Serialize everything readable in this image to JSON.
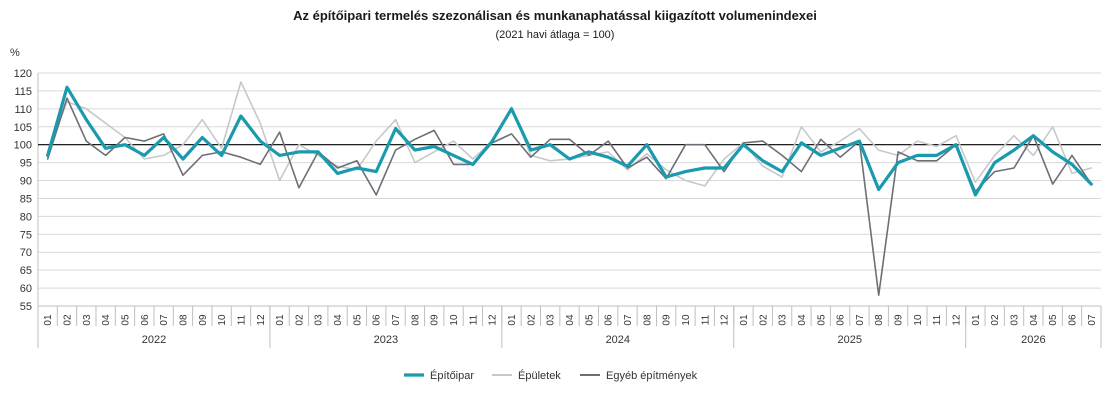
{
  "chart_data": {
    "type": "line",
    "title": "Az építőipari termelés szezonálisan és munkanaphatással kiigazított volumenindexei",
    "subtitle": "(2021 havi átlaga = 100)",
    "ylabel": "%",
    "ylim": [
      55,
      120
    ],
    "yticks": [
      55,
      60,
      65,
      70,
      75,
      80,
      85,
      90,
      95,
      100,
      105,
      110,
      115,
      120
    ],
    "reference_line": 100,
    "grid": true,
    "legend_position": "bottom",
    "years": [
      "2022",
      "2023",
      "2024",
      "2025",
      "2026"
    ],
    "months": [
      "01",
      "02",
      "03",
      "04",
      "05",
      "06",
      "07",
      "08",
      "09",
      "10",
      "11",
      "12",
      "01",
      "02",
      "03",
      "04",
      "05",
      "06",
      "07",
      "08",
      "09",
      "10",
      "11",
      "12",
      "01",
      "02",
      "03",
      "04",
      "05",
      "06",
      "07",
      "08",
      "09",
      "10",
      "11",
      "12",
      "01",
      "02",
      "03",
      "04",
      "05",
      "06",
      "07",
      "08",
      "09",
      "10",
      "11",
      "12",
      "01",
      "02",
      "03",
      "04",
      "05",
      "06",
      "07"
    ],
    "series": [
      {
        "name": "Építőipar",
        "color": "#1a9aae",
        "values": [
          97,
          116,
          107,
          99,
          100,
          97,
          102,
          96,
          102,
          97,
          108,
          101,
          97,
          98,
          98,
          92,
          93.5,
          92.5,
          104.5,
          98.5,
          99.5,
          97,
          94.5,
          101,
          110,
          98.5,
          100,
          96,
          98,
          96.5,
          94,
          100,
          91,
          92.5,
          93.5,
          93.5,
          100,
          95.5,
          92.5,
          100.5,
          97,
          99,
          101,
          87.5,
          95,
          97,
          97,
          100,
          86,
          95,
          98.5,
          102.5,
          98,
          94.5,
          89
        ]
      },
      {
        "name": "Épületek",
        "color": "#c6c8ca",
        "values": [
          98,
          112,
          110,
          106,
          102,
          96,
          97,
          100,
          107,
          99,
          117.5,
          106,
          90,
          100,
          97,
          94,
          93,
          101,
          107,
          95,
          98,
          101,
          96,
          101,
          110.5,
          97,
          95.5,
          96,
          97,
          98,
          93,
          97.5,
          93,
          90,
          88.5,
          96,
          100.5,
          94,
          91,
          105,
          98,
          101,
          104.5,
          98.5,
          97,
          101,
          99.5,
          102.5,
          89.5,
          97,
          102.5,
          97,
          105,
          92,
          93.5
        ]
      },
      {
        "name": "Egyéb építmények",
        "color": "#6e6e78",
        "values": [
          96,
          113,
          101,
          97,
          102,
          101,
          103,
          91.5,
          97,
          98,
          96.5,
          94.5,
          103.5,
          88,
          98,
          93.5,
          95.5,
          86,
          98.5,
          101.5,
          104,
          94.5,
          94.5,
          100.5,
          103,
          96.5,
          101.5,
          101.5,
          97,
          101,
          93.5,
          96.5,
          90.5,
          100,
          100,
          92.5,
          100.5,
          101,
          97,
          92.5,
          101.5,
          96.5,
          101,
          58,
          98,
          95.5,
          95.5,
          100,
          87,
          92.5,
          93.5,
          102.5,
          89,
          97,
          89
        ]
      }
    ]
  }
}
